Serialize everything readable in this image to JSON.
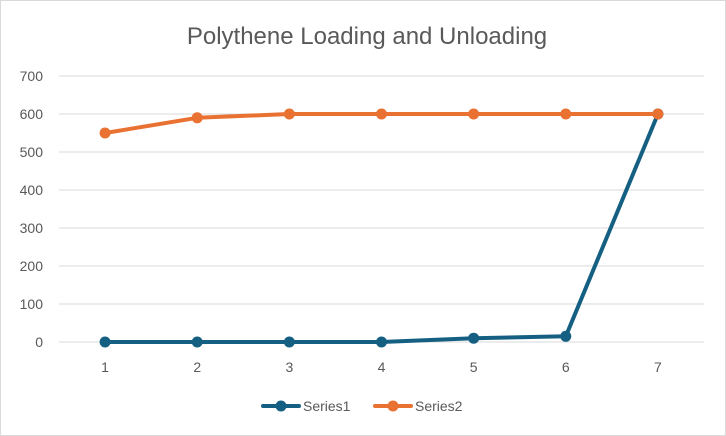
{
  "chart_data": {
    "type": "line",
    "title": "Polythene Loading and Unloading",
    "xlabel": "",
    "ylabel": "",
    "x": [
      1,
      2,
      3,
      4,
      5,
      6,
      7
    ],
    "ylim": [
      0,
      700
    ],
    "yticks": [
      0,
      100,
      200,
      300,
      400,
      500,
      600,
      700
    ],
    "grid": true,
    "legend": "bottom",
    "series": [
      {
        "name": "Series1",
        "values": [
          0,
          0,
          0,
          0,
          10,
          15,
          600
        ],
        "color": "#156082"
      },
      {
        "name": "Series2",
        "values": [
          550,
          590,
          600,
          600,
          600,
          600,
          600
        ],
        "color": "#E97132"
      }
    ],
    "grid_color": "#d9d9d9",
    "text_color": "#595959"
  }
}
